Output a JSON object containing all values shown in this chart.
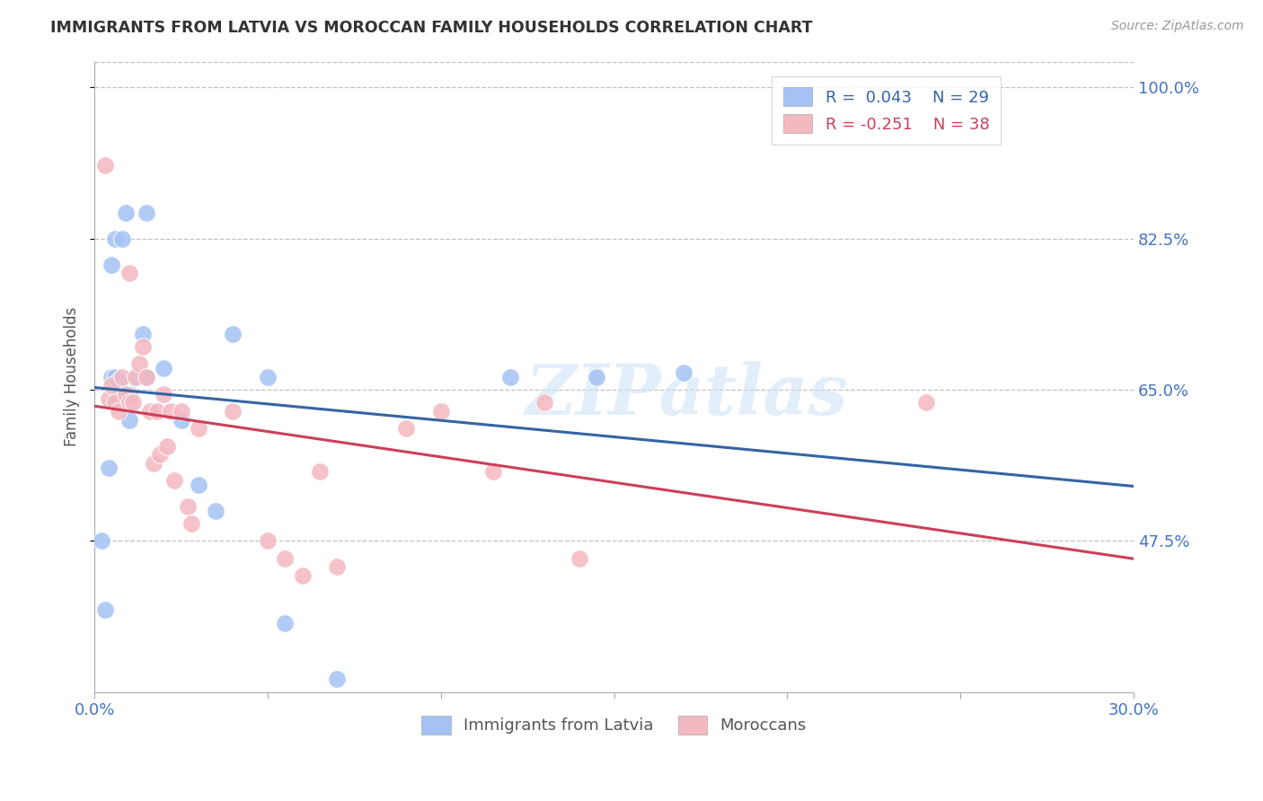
{
  "title": "IMMIGRANTS FROM LATVIA VS MOROCCAN FAMILY HOUSEHOLDS CORRELATION CHART",
  "source": "Source: ZipAtlas.com",
  "ylabel": "Family Households",
  "xlim": [
    0.0,
    0.3
  ],
  "ylim": [
    0.3,
    1.03
  ],
  "yticks": [
    0.475,
    0.65,
    0.825,
    1.0
  ],
  "ytick_labels": [
    "47.5%",
    "65.0%",
    "82.5%",
    "100.0%"
  ],
  "xticks": [
    0.0,
    0.05,
    0.1,
    0.15,
    0.2,
    0.25,
    0.3
  ],
  "legend_label1": "R =  0.043    N = 29",
  "legend_label2": "R = -0.251    N = 38",
  "legend_label1_short": "Immigrants from Latvia",
  "legend_label2_short": "Moroccans",
  "blue_color": "#a4c2f4",
  "pink_color": "#f4b8c1",
  "blue_line_color": "#3465a4",
  "pink_line_color": "#cc3f5a",
  "text_color": "#4472c4",
  "grid_color": "#c0c0c0",
  "background_color": "#ffffff",
  "watermark": "ZIPatlas",
  "blue_points_x": [
    0.002,
    0.003,
    0.004,
    0.005,
    0.005,
    0.006,
    0.006,
    0.007,
    0.007,
    0.008,
    0.008,
    0.009,
    0.01,
    0.01,
    0.012,
    0.014,
    0.015,
    0.015,
    0.02,
    0.025,
    0.03,
    0.035,
    0.04,
    0.05,
    0.055,
    0.07,
    0.12,
    0.145,
    0.17
  ],
  "blue_points_y": [
    0.475,
    0.395,
    0.56,
    0.665,
    0.795,
    0.665,
    0.825,
    0.64,
    0.66,
    0.645,
    0.825,
    0.855,
    0.615,
    0.645,
    0.665,
    0.715,
    0.665,
    0.855,
    0.675,
    0.615,
    0.54,
    0.51,
    0.715,
    0.665,
    0.38,
    0.315,
    0.665,
    0.665,
    0.67
  ],
  "pink_points_x": [
    0.003,
    0.004,
    0.005,
    0.006,
    0.007,
    0.008,
    0.009,
    0.01,
    0.01,
    0.011,
    0.012,
    0.013,
    0.014,
    0.015,
    0.016,
    0.017,
    0.018,
    0.019,
    0.02,
    0.021,
    0.022,
    0.023,
    0.025,
    0.027,
    0.028,
    0.03,
    0.04,
    0.05,
    0.055,
    0.06,
    0.065,
    0.07,
    0.09,
    0.1,
    0.115,
    0.13,
    0.14,
    0.24
  ],
  "pink_points_y": [
    0.91,
    0.64,
    0.655,
    0.635,
    0.625,
    0.665,
    0.645,
    0.635,
    0.785,
    0.635,
    0.665,
    0.68,
    0.7,
    0.665,
    0.625,
    0.565,
    0.625,
    0.575,
    0.645,
    0.585,
    0.625,
    0.545,
    0.625,
    0.515,
    0.495,
    0.605,
    0.625,
    0.475,
    0.455,
    0.435,
    0.555,
    0.445,
    0.605,
    0.625,
    0.555,
    0.635,
    0.455,
    0.635
  ]
}
